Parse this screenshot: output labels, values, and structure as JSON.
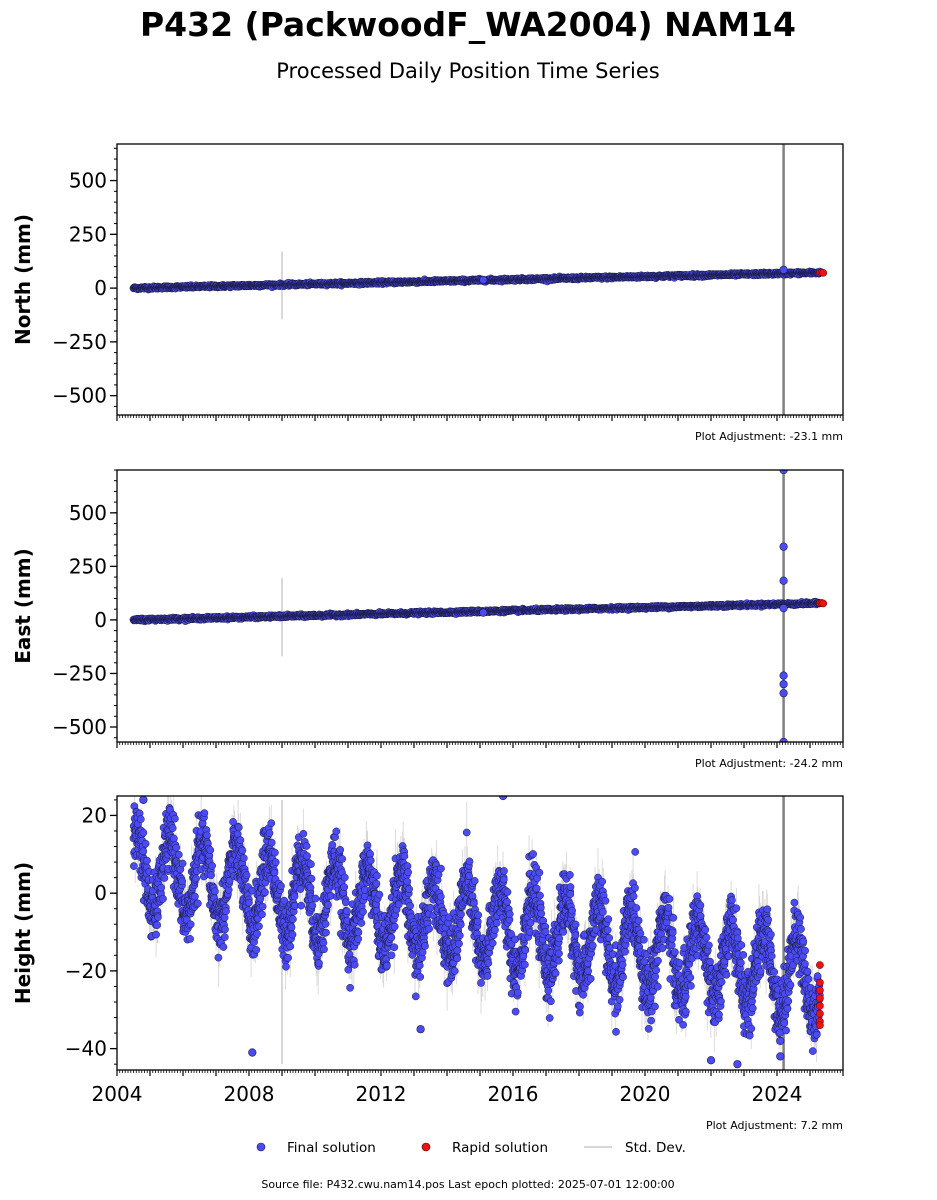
{
  "title": "P432 (PackwoodF_WA2004) NAM14",
  "subtitle": "Processed Daily Position Time Series",
  "footer": "Source file: P432.cwu.nam14.pos  Last epoch plotted: 2025-07-01 12:00:00",
  "colors": {
    "final": "#4b4bf5",
    "final_edge": "#1a1a40",
    "rapid": "#ee1111",
    "stddev": "#cccccc",
    "vline": "#808080"
  },
  "legend": {
    "final_label": "Final solution",
    "rapid_label": "Rapid solution",
    "stddev_label": "Std. Dev."
  },
  "chart_data": [
    {
      "type": "scatter",
      "name": "north",
      "ylabel": "North (mm)",
      "adjustment": "Plot Adjustment: -23.1 mm",
      "xlim": [
        2004.0,
        2026.0
      ],
      "ylim": [
        -590,
        670
      ],
      "yticks": [
        -500,
        -250,
        0,
        250,
        500
      ],
      "ytick_labels": [
        "−500",
        "−250",
        "0",
        "250",
        "500"
      ],
      "trend": {
        "x": [
          2004.5,
          2025.3
        ],
        "y": [
          0,
          72
        ]
      },
      "vline_x": 2024.2,
      "stddev_spikes": [
        {
          "x": 2009.0,
          "y0": -145,
          "y1": 170
        }
      ],
      "outliers": [
        {
          "x": 2015.1,
          "y": 38
        },
        {
          "x": 2024.2,
          "y": 85
        }
      ],
      "rapid_points": [
        {
          "x": 2025.3,
          "y": 72
        },
        {
          "x": 2025.35,
          "y": 73
        },
        {
          "x": 2025.4,
          "y": 71
        }
      ]
    },
    {
      "type": "scatter",
      "name": "east",
      "ylabel": "East (mm)",
      "adjustment": "Plot Adjustment: -24.2 mm",
      "xlim": [
        2004.0,
        2026.0
      ],
      "ylim": [
        -570,
        700
      ],
      "yticks": [
        -500,
        -250,
        0,
        250,
        500
      ],
      "ytick_labels": [
        "−500",
        "−250",
        "0",
        "250",
        "500"
      ],
      "trend": {
        "x": [
          2004.5,
          2025.3
        ],
        "y": [
          0,
          78
        ]
      },
      "vline_x": 2024.2,
      "stddev_spikes": [
        {
          "x": 2009.0,
          "y0": -170,
          "y1": 195
        }
      ],
      "outliers": [
        {
          "x": 2015.1,
          "y": 34
        },
        {
          "x": 2024.2,
          "y": 700
        },
        {
          "x": 2024.2,
          "y": 342
        },
        {
          "x": 2024.2,
          "y": 183
        },
        {
          "x": 2024.2,
          "y": 55
        },
        {
          "x": 2024.2,
          "y": -260
        },
        {
          "x": 2024.2,
          "y": -300
        },
        {
          "x": 2024.2,
          "y": -342
        },
        {
          "x": 2024.2,
          "y": -570
        }
      ],
      "rapid_points": [
        {
          "x": 2025.3,
          "y": 78
        },
        {
          "x": 2025.35,
          "y": 79
        },
        {
          "x": 2025.4,
          "y": 77
        }
      ]
    },
    {
      "type": "scatter",
      "name": "height",
      "ylabel": "Height (mm)",
      "adjustment": "Plot Adjustment: 7.2 mm",
      "xlim": [
        2004.0,
        2026.0
      ],
      "ylim": [
        -45.5,
        25
      ],
      "yticks": [
        -40,
        -20,
        0,
        20
      ],
      "ytick_labels": [
        "−40",
        "−20",
        "0",
        "20"
      ],
      "xticks": [
        2004,
        2008,
        2012,
        2016,
        2020,
        2024
      ],
      "xtick_labels": [
        "2004",
        "2008",
        "2012",
        "2016",
        "2020",
        "2024"
      ],
      "seasonal": {
        "start": 2004.5,
        "end": 2025.3,
        "offset_start": 6,
        "offset_end": -22,
        "amplitude": 10,
        "phase_peak": 0.6
      },
      "vline_x": 2024.2,
      "stddev_spikes": [
        {
          "x": 2009.0,
          "y0": -44,
          "y1": 24
        }
      ],
      "outliers": [
        {
          "x": 2004.8,
          "y": 24
        },
        {
          "x": 2008.1,
          "y": -41
        },
        {
          "x": 2015.7,
          "y": 25
        },
        {
          "x": 2022.0,
          "y": -43
        },
        {
          "x": 2022.8,
          "y": -44
        },
        {
          "x": 2024.1,
          "y": -38
        },
        {
          "x": 2024.1,
          "y": -42
        },
        {
          "x": 2013.2,
          "y": -35
        }
      ],
      "rapid_points": [
        {
          "x": 2025.3,
          "y": -18.5
        },
        {
          "x": 2025.3,
          "y": -23
        },
        {
          "x": 2025.3,
          "y": -25
        },
        {
          "x": 2025.3,
          "y": -27
        },
        {
          "x": 2025.3,
          "y": -29
        },
        {
          "x": 2025.3,
          "y": -31
        },
        {
          "x": 2025.3,
          "y": -33
        },
        {
          "x": 2025.3,
          "y": -34
        }
      ]
    }
  ]
}
